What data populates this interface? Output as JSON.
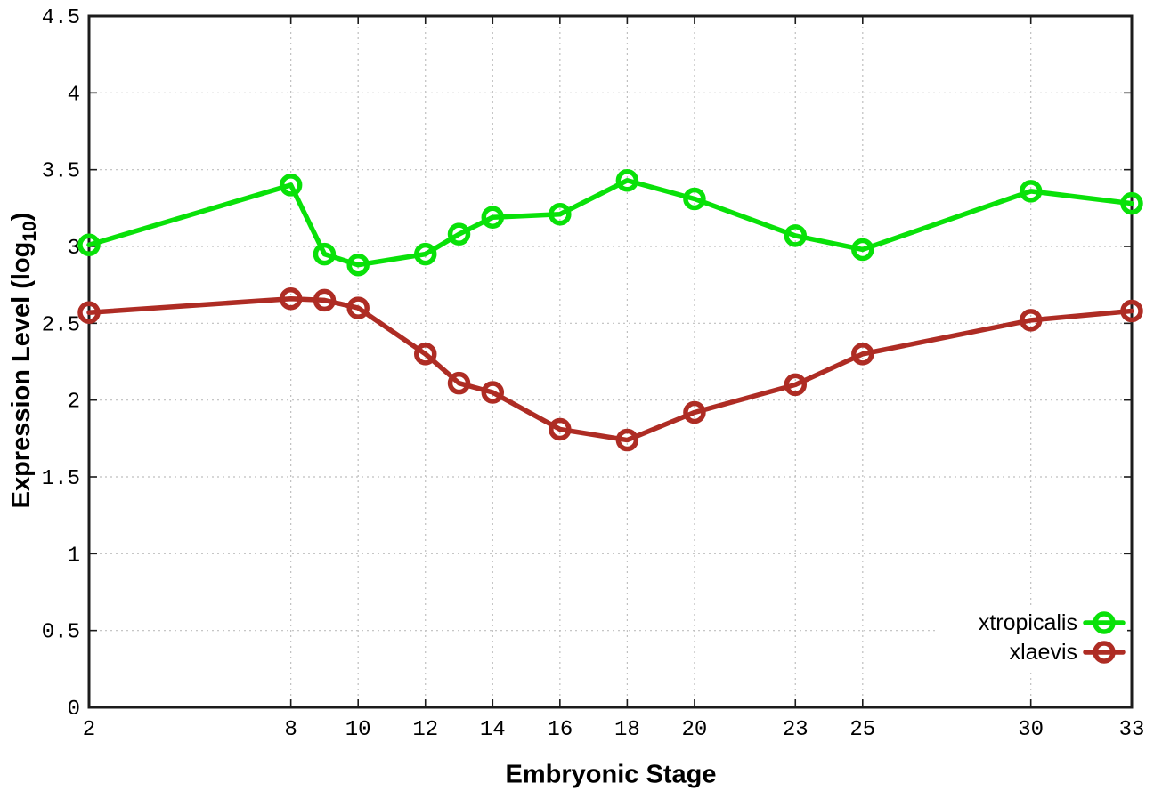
{
  "figure": {
    "background": "#ffffff",
    "xlabel": "Embryonic Stage",
    "ylabel_prefix": "Expression Level (log",
    "ylabel_sub": "10",
    "ylabel_suffix": ")"
  },
  "chart_data": {
    "type": "line",
    "title": "",
    "xlabel": "Embryonic Stage",
    "ylabel": "Expression Level (log10)",
    "x": [
      2,
      8,
      9,
      10,
      12,
      13,
      14,
      16,
      18,
      20,
      23,
      25,
      30,
      33
    ],
    "series": [
      {
        "name": "xtropicalis",
        "color": "#09e109",
        "values": [
          3.01,
          3.4,
          2.95,
          2.88,
          2.95,
          3.08,
          3.19,
          3.21,
          3.43,
          3.31,
          3.07,
          2.98,
          3.36,
          3.28
        ]
      },
      {
        "name": "xlaevis",
        "color": "#ae2c24",
        "values": [
          2.57,
          2.66,
          2.65,
          2.6,
          2.3,
          2.11,
          2.05,
          1.81,
          1.74,
          1.92,
          2.1,
          2.3,
          2.52,
          2.58
        ]
      }
    ],
    "xticks": [
      2,
      8,
      10,
      12,
      14,
      16,
      18,
      20,
      23,
      25,
      30,
      33
    ],
    "yticks": [
      0,
      0.5,
      1,
      1.5,
      2,
      2.5,
      3,
      3.5,
      4,
      4.5
    ],
    "xlim": [
      2,
      33
    ],
    "ylim": [
      0,
      4.5
    ],
    "grid": true,
    "legend_position": "bottom-right",
    "marker": "open-circle",
    "colors": {
      "grid": "#bfbfbf",
      "border": "#1c1c1c",
      "text": "#000000"
    }
  }
}
